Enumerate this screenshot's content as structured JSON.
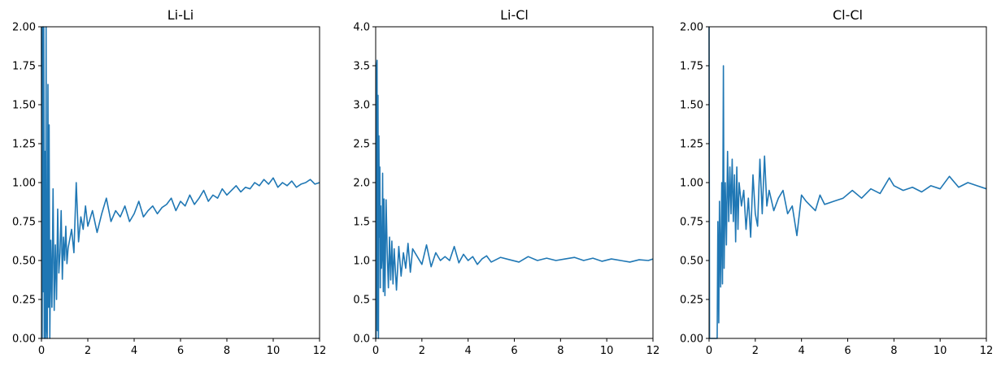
{
  "chart_data": [
    {
      "type": "line",
      "title": "Li-Li",
      "xlabel": "",
      "ylabel": "",
      "xlim": [
        0,
        12
      ],
      "ylim": [
        0,
        2.0
      ],
      "xticks": [
        "0",
        "2",
        "4",
        "6",
        "8",
        "10",
        "12"
      ],
      "yticks": [
        "0.00",
        "0.25",
        "0.50",
        "0.75",
        "1.00",
        "1.25",
        "1.50",
        "1.75",
        "2.00"
      ],
      "grid": false,
      "color": "#1f77b4",
      "series": [
        {
          "x": [
            0.0,
            0.03,
            0.06,
            0.08,
            0.1,
            0.12,
            0.15,
            0.18,
            0.2,
            0.22,
            0.25,
            0.28,
            0.3,
            0.33,
            0.36,
            0.4,
            0.45,
            0.5,
            0.55,
            0.6,
            0.65,
            0.7,
            0.75,
            0.8,
            0.85,
            0.9,
            0.95,
            1.0,
            1.05,
            1.1,
            1.15,
            1.2,
            1.3,
            1.4,
            1.5,
            1.6,
            1.7,
            1.8,
            1.9,
            2.0,
            2.2,
            2.4,
            2.6,
            2.8,
            3.0,
            3.2,
            3.4,
            3.6,
            3.8,
            4.0,
            4.2,
            4.4,
            4.6,
            4.8,
            5.0,
            5.2,
            5.4,
            5.6,
            5.8,
            6.0,
            6.2,
            6.4,
            6.6,
            6.8,
            7.0,
            7.2,
            7.4,
            7.6,
            7.8,
            8.0,
            8.2,
            8.4,
            8.6,
            8.8,
            9.0,
            9.2,
            9.4,
            9.6,
            9.8,
            10.0,
            10.2,
            10.4,
            10.6,
            10.8,
            11.0,
            11.2,
            11.4,
            11.6,
            11.8,
            12.0
          ],
          "y": [
            2.0,
            0.0,
            2.0,
            0.3,
            2.0,
            0.0,
            1.2,
            0.0,
            2.0,
            0.1,
            0.0,
            1.63,
            0.2,
            1.37,
            0.0,
            0.63,
            0.2,
            0.96,
            0.18,
            0.6,
            0.25,
            0.83,
            0.42,
            0.55,
            0.82,
            0.38,
            0.65,
            0.5,
            0.72,
            0.48,
            0.58,
            0.62,
            0.7,
            0.55,
            1.0,
            0.62,
            0.78,
            0.7,
            0.85,
            0.72,
            0.82,
            0.68,
            0.8,
            0.9,
            0.75,
            0.82,
            0.78,
            0.85,
            0.75,
            0.8,
            0.88,
            0.78,
            0.82,
            0.85,
            0.8,
            0.84,
            0.86,
            0.9,
            0.82,
            0.88,
            0.85,
            0.92,
            0.86,
            0.9,
            0.95,
            0.88,
            0.92,
            0.9,
            0.96,
            0.92,
            0.95,
            0.98,
            0.94,
            0.97,
            0.96,
            1.0,
            0.98,
            1.02,
            0.99,
            1.03,
            0.97,
            1.0,
            0.98,
            1.01,
            0.97,
            0.99,
            1.0,
            1.02,
            0.99,
            1.0
          ]
        }
      ]
    },
    {
      "type": "line",
      "title": "Li-Cl",
      "xlabel": "",
      "ylabel": "",
      "xlim": [
        0,
        12
      ],
      "ylim": [
        0,
        4.0
      ],
      "xticks": [
        "0",
        "2",
        "4",
        "6",
        "8",
        "10",
        "12"
      ],
      "yticks": [
        "0.0",
        "0.5",
        "1.0",
        "1.5",
        "2.0",
        "2.5",
        "3.0",
        "3.5",
        "4.0"
      ],
      "grid": false,
      "color": "#1f77b4",
      "series": [
        {
          "x": [
            0.0,
            0.02,
            0.04,
            0.06,
            0.08,
            0.1,
            0.12,
            0.14,
            0.16,
            0.18,
            0.2,
            0.22,
            0.25,
            0.28,
            0.3,
            0.33,
            0.36,
            0.4,
            0.45,
            0.5,
            0.55,
            0.6,
            0.65,
            0.7,
            0.75,
            0.8,
            0.9,
            1.0,
            1.1,
            1.2,
            1.3,
            1.4,
            1.5,
            1.6,
            1.8,
            2.0,
            2.2,
            2.4,
            2.6,
            2.8,
            3.0,
            3.2,
            3.4,
            3.6,
            3.8,
            4.0,
            4.2,
            4.4,
            4.6,
            4.8,
            5.0,
            5.4,
            5.8,
            6.2,
            6.6,
            7.0,
            7.4,
            7.8,
            8.2,
            8.6,
            9.0,
            9.4,
            9.8,
            10.2,
            10.6,
            11.0,
            11.4,
            11.8,
            12.0
          ],
          "y": [
            0.0,
            0.0,
            3.5,
            3.57,
            0.1,
            3.12,
            0.0,
            2.6,
            1.3,
            2.2,
            0.65,
            1.7,
            0.9,
            1.1,
            2.12,
            0.6,
            1.79,
            0.55,
            1.78,
            1.1,
            0.65,
            1.3,
            0.75,
            1.25,
            0.7,
            1.15,
            0.62,
            1.18,
            0.8,
            1.1,
            0.9,
            1.22,
            0.85,
            1.15,
            1.05,
            0.95,
            1.2,
            0.92,
            1.1,
            1.0,
            1.05,
            1.0,
            1.18,
            0.97,
            1.08,
            1.0,
            1.05,
            0.95,
            1.02,
            1.06,
            0.98,
            1.04,
            1.01,
            0.98,
            1.05,
            1.0,
            1.03,
            1.0,
            1.02,
            1.04,
            1.0,
            1.03,
            0.99,
            1.02,
            1.0,
            0.98,
            1.01,
            1.0,
            1.02
          ]
        }
      ]
    },
    {
      "type": "line",
      "title": "Cl-Cl",
      "xlabel": "",
      "ylabel": "",
      "xlim": [
        0,
        12
      ],
      "ylim": [
        0,
        2.0
      ],
      "xticks": [
        "0",
        "2",
        "4",
        "6",
        "8",
        "10",
        "12"
      ],
      "yticks": [
        "0.00",
        "0.25",
        "0.50",
        "0.75",
        "1.00",
        "1.25",
        "1.50",
        "1.75",
        "2.00"
      ],
      "grid": false,
      "color": "#1f77b4",
      "series": [
        {
          "x": [
            0.0,
            0.02,
            0.04,
            0.1,
            0.2,
            0.3,
            0.35,
            0.38,
            0.42,
            0.45,
            0.5,
            0.55,
            0.58,
            0.62,
            0.65,
            0.7,
            0.75,
            0.8,
            0.85,
            0.9,
            0.95,
            1.0,
            1.05,
            1.1,
            1.15,
            1.2,
            1.25,
            1.3,
            1.4,
            1.5,
            1.6,
            1.7,
            1.8,
            1.9,
            2.0,
            2.1,
            2.2,
            2.3,
            2.4,
            2.5,
            2.6,
            2.8,
            3.0,
            3.2,
            3.4,
            3.6,
            3.8,
            4.0,
            4.2,
            4.4,
            4.6,
            4.8,
            5.0,
            5.4,
            5.8,
            6.2,
            6.6,
            7.0,
            7.4,
            7.8,
            8.0,
            8.4,
            8.8,
            9.2,
            9.6,
            10.0,
            10.4,
            10.8,
            11.2,
            11.6,
            12.0
          ],
          "y": [
            2.0,
            0.0,
            0.0,
            0.0,
            0.0,
            0.0,
            0.0,
            0.75,
            0.1,
            0.88,
            0.33,
            1.0,
            0.35,
            1.75,
            0.45,
            1.0,
            0.6,
            1.2,
            0.75,
            1.1,
            0.8,
            1.15,
            0.75,
            1.05,
            0.62,
            1.1,
            0.7,
            1.0,
            0.85,
            0.95,
            0.7,
            0.9,
            0.65,
            1.05,
            0.8,
            0.72,
            1.15,
            0.8,
            1.17,
            0.85,
            0.95,
            0.82,
            0.9,
            0.95,
            0.8,
            0.85,
            0.66,
            0.92,
            0.88,
            0.85,
            0.82,
            0.92,
            0.86,
            0.88,
            0.9,
            0.95,
            0.9,
            0.96,
            0.93,
            1.03,
            0.98,
            0.95,
            0.97,
            0.94,
            0.98,
            0.96,
            1.04,
            0.97,
            1.0,
            0.98,
            0.96
          ]
        }
      ]
    }
  ]
}
